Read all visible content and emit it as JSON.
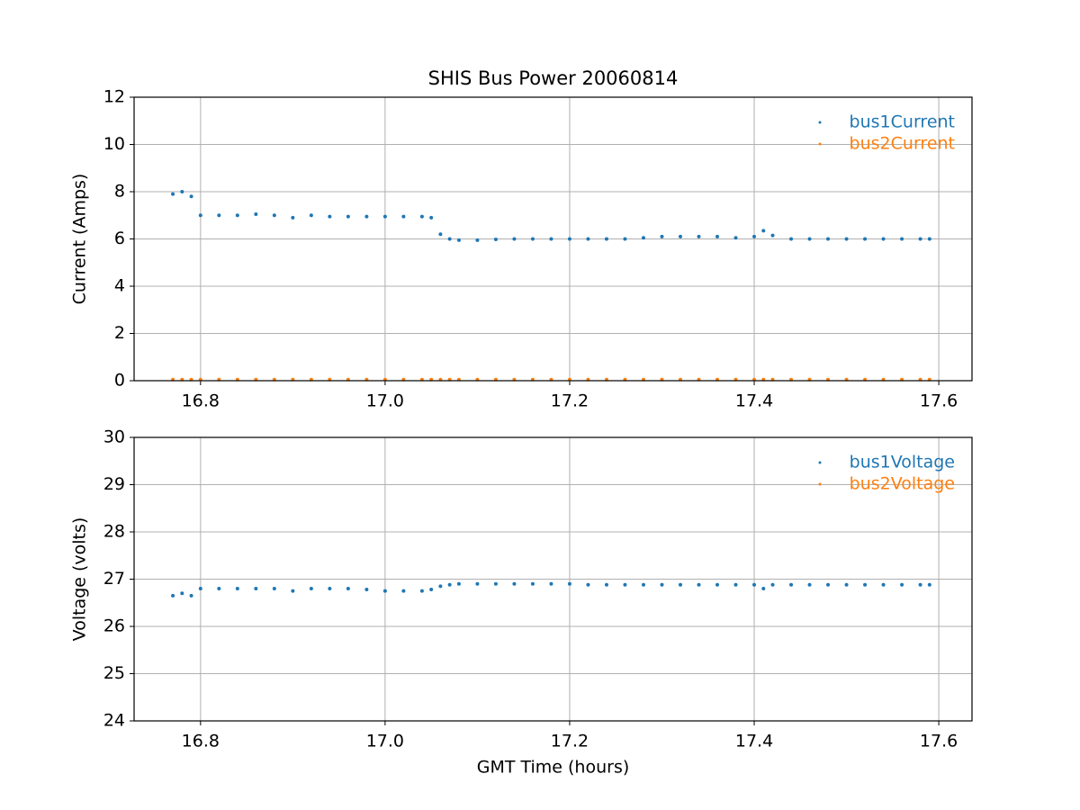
{
  "chart_data": [
    {
      "type": "scatter",
      "title": "SHIS Bus Power 20060814",
      "y_label": "Current (Amps)",
      "x": [
        16.77,
        16.78,
        16.79,
        16.8,
        16.82,
        16.84,
        16.86,
        16.88,
        16.9,
        16.92,
        16.94,
        16.96,
        16.98,
        17.0,
        17.02,
        17.04,
        17.05,
        17.06,
        17.07,
        17.08,
        17.1,
        17.12,
        17.14,
        17.16,
        17.18,
        17.2,
        17.22,
        17.24,
        17.26,
        17.28,
        17.3,
        17.32,
        17.34,
        17.36,
        17.38,
        17.4,
        17.41,
        17.42,
        17.44,
        17.46,
        17.48,
        17.5,
        17.52,
        17.54,
        17.56,
        17.58,
        17.59
      ],
      "series": [
        {
          "name": "bus1Current",
          "color": "#1f77b4",
          "values": [
            7.9,
            8.0,
            7.8,
            7.0,
            7.0,
            7.0,
            7.05,
            7.0,
            6.9,
            7.0,
            6.95,
            6.95,
            6.95,
            6.95,
            6.95,
            6.95,
            6.9,
            6.2,
            6.0,
            5.95,
            5.95,
            5.98,
            6.0,
            6.0,
            6.0,
            6.0,
            6.0,
            6.0,
            6.0,
            6.05,
            6.1,
            6.1,
            6.1,
            6.1,
            6.05,
            6.1,
            6.35,
            6.15,
            6.0,
            6.0,
            6.0,
            6.0,
            6.0,
            6.0,
            6.0,
            6.0,
            6.0
          ]
        },
        {
          "name": "bus2Current",
          "color": "#ff7f0e",
          "values": [
            0.05,
            0.05,
            0.05,
            0.05,
            0.05,
            0.05,
            0.05,
            0.05,
            0.05,
            0.05,
            0.05,
            0.05,
            0.05,
            0.05,
            0.05,
            0.05,
            0.05,
            0.05,
            0.05,
            0.05,
            0.05,
            0.05,
            0.05,
            0.05,
            0.05,
            0.05,
            0.05,
            0.05,
            0.05,
            0.05,
            0.05,
            0.05,
            0.05,
            0.05,
            0.05,
            0.05,
            0.05,
            0.05,
            0.05,
            0.05,
            0.05,
            0.05,
            0.05,
            0.05,
            0.05,
            0.05,
            0.05
          ]
        }
      ],
      "xlim": [
        16.728,
        17.636
      ],
      "xticks": [
        16.8,
        {
          "value": 17,
          "label": "17.0"
        },
        17.2,
        17.4,
        17.6
      ],
      "ylim": [
        0,
        12
      ],
      "yticks": [
        0,
        2,
        4,
        6,
        8,
        10,
        12
      ],
      "grid": true,
      "legend": "upper right"
    },
    {
      "type": "scatter",
      "y_label": "Voltage (volts)",
      "x_label": "GMT Time (hours)",
      "x": [
        16.77,
        16.78,
        16.79,
        16.8,
        16.82,
        16.84,
        16.86,
        16.88,
        16.9,
        16.92,
        16.94,
        16.96,
        16.98,
        17.0,
        17.02,
        17.04,
        17.05,
        17.06,
        17.07,
        17.08,
        17.1,
        17.12,
        17.14,
        17.16,
        17.18,
        17.2,
        17.22,
        17.24,
        17.26,
        17.28,
        17.3,
        17.32,
        17.34,
        17.36,
        17.38,
        17.4,
        17.41,
        17.42,
        17.44,
        17.46,
        17.48,
        17.5,
        17.52,
        17.54,
        17.56,
        17.58,
        17.59
      ],
      "series": [
        {
          "name": "bus1Voltage",
          "color": "#1f77b4",
          "values": [
            26.65,
            26.7,
            26.65,
            26.8,
            26.8,
            26.8,
            26.8,
            26.8,
            26.75,
            26.8,
            26.8,
            26.8,
            26.78,
            26.75,
            26.75,
            26.75,
            26.78,
            26.85,
            26.88,
            26.9,
            26.9,
            26.9,
            26.9,
            26.9,
            26.9,
            26.9,
            26.88,
            26.88,
            26.88,
            26.88,
            26.88,
            26.88,
            26.88,
            26.88,
            26.88,
            26.88,
            26.8,
            26.88,
            26.88,
            26.88,
            26.88,
            26.88,
            26.88,
            26.88,
            26.88,
            26.88,
            26.88
          ]
        },
        {
          "name": "bus2Voltage",
          "color": "#ff7f0e",
          "values": [
            null,
            null,
            null,
            null,
            null,
            null,
            null,
            null,
            null,
            null,
            null,
            null,
            null,
            null,
            null,
            null,
            null,
            null,
            null,
            null,
            null,
            null,
            null,
            null,
            null,
            null,
            null,
            null,
            null,
            null,
            null,
            null,
            null,
            null,
            null,
            null,
            null,
            null,
            null,
            null,
            null,
            null,
            null,
            null,
            null,
            null,
            null
          ]
        }
      ],
      "xlim": [
        16.728,
        17.636
      ],
      "xticks": [
        16.8,
        {
          "value": 17,
          "label": "17.0"
        },
        17.2,
        17.4,
        17.6
      ],
      "ylim": [
        24,
        30
      ],
      "yticks": [
        24,
        25,
        26,
        27,
        28,
        29,
        30
      ],
      "grid": true,
      "legend": "upper right"
    }
  ]
}
